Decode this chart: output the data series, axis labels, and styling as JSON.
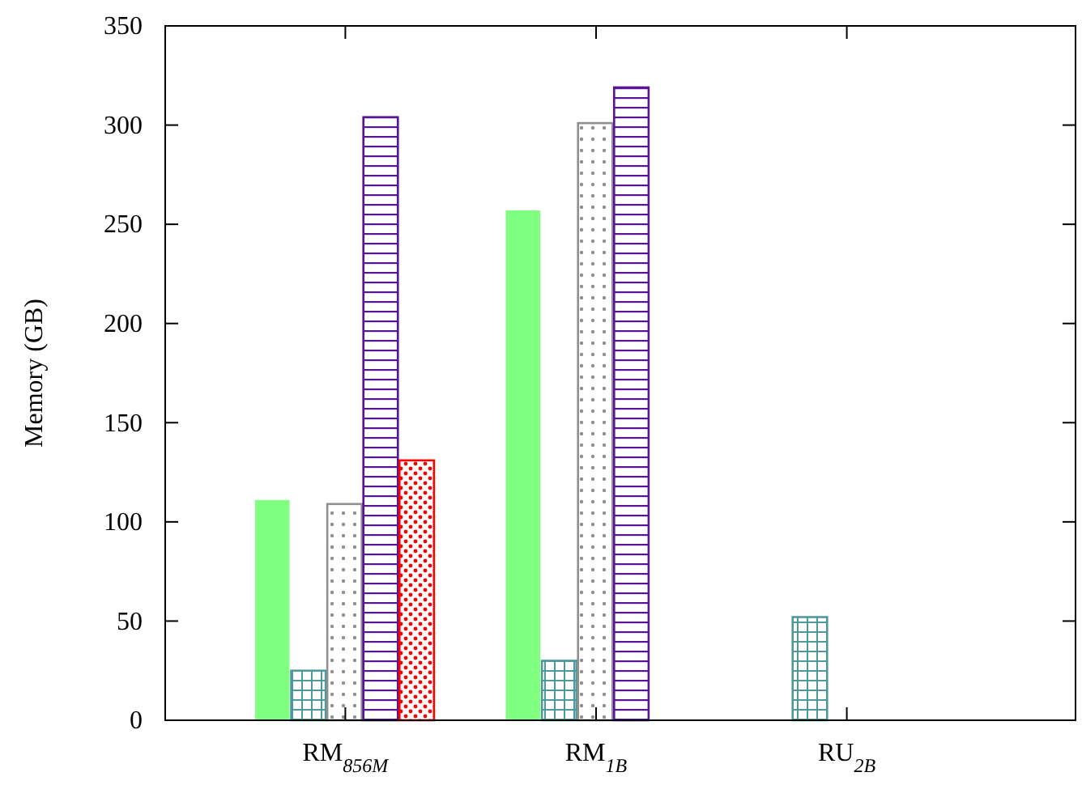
{
  "chart_data": {
    "type": "bar",
    "ylabel": "Memory (GB)",
    "categories": [
      "RM$_{856M}$",
      "RM$_{1B}$",
      "RU$_{2B}$"
    ],
    "series": [
      {
        "color": "#80ff80",
        "values": [
          111,
          257,
          null
        ]
      },
      {
        "color": "#4e9a9a",
        "values": [
          25,
          30,
          52
        ]
      },
      {
        "color": "#909090",
        "values": [
          109,
          301,
          null
        ]
      },
      {
        "color": "#5a1496",
        "values": [
          304,
          319,
          null
        ]
      },
      {
        "color": "#ff0000",
        "values": [
          131,
          null,
          null
        ]
      }
    ],
    "ylim": [
      0,
      350
    ],
    "yticks": [
      0,
      50,
      100,
      150,
      200,
      250,
      300,
      350
    ]
  }
}
